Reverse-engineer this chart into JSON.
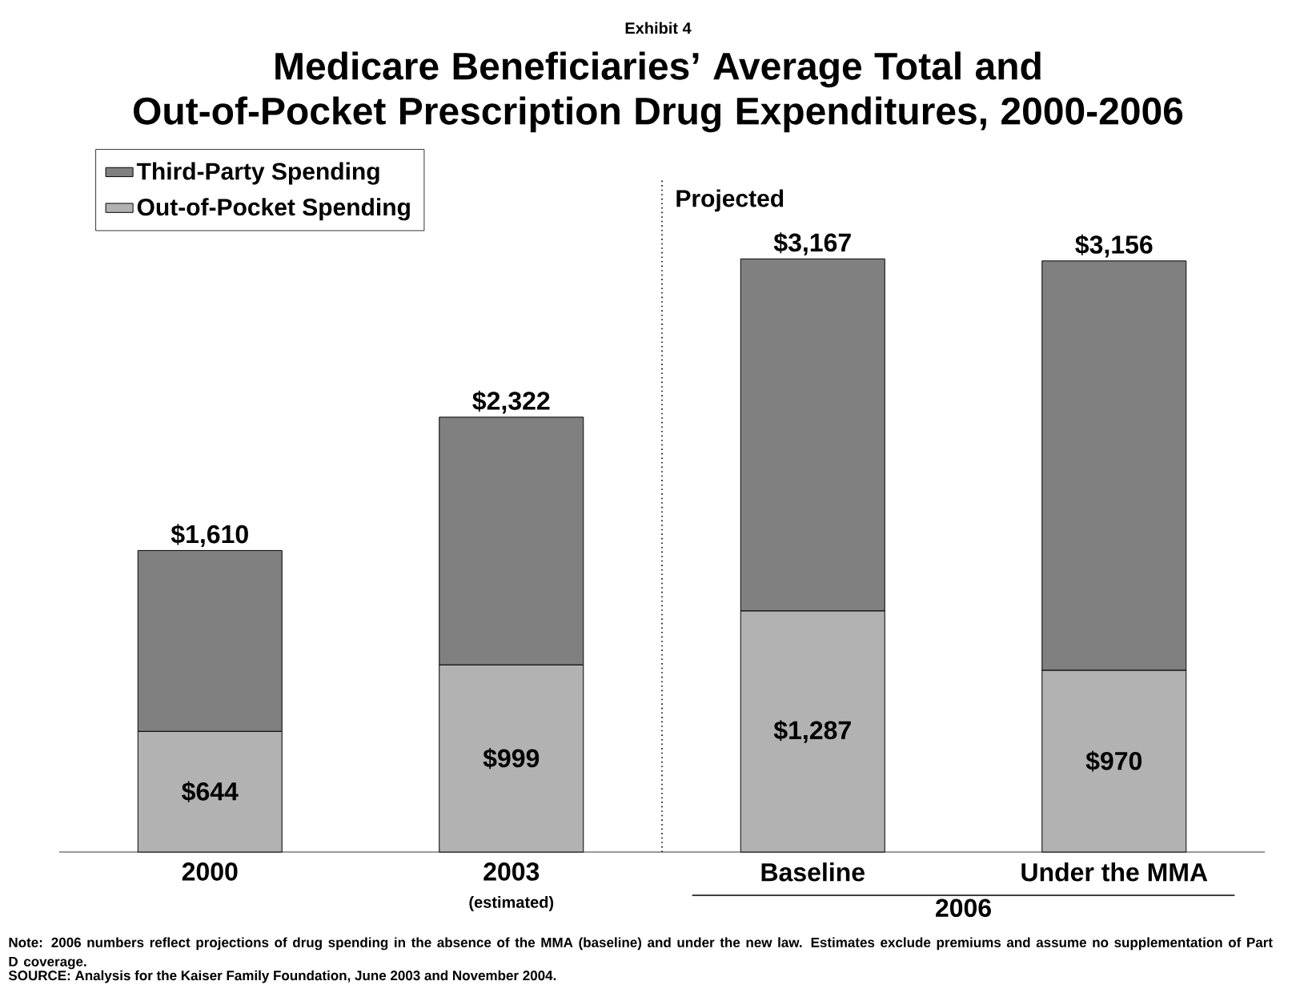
{
  "chart_data": {
    "type": "bar",
    "title": "Medicare Beneficiaries’ Average Total and Out-of-Pocket Prescription Drug Expenditures, 2000-2006",
    "categories": [
      "2000",
      "2003",
      "Baseline",
      "Under the MMA"
    ],
    "stacked": true,
    "series": [
      {
        "name": "Out-of-Pocket Spending",
        "color": "#b2b2b2",
        "values": [
          644,
          999,
          1287,
          970
        ],
        "value_labels": [
          "$644",
          "$999",
          "$1,287",
          "$970"
        ]
      },
      {
        "name": "Third-Party Spending",
        "color": "#808080",
        "values": [
          966,
          1323,
          1880,
          2186
        ]
      }
    ],
    "totals": [
      "$1,610",
      "$2,322",
      "$3,167",
      "$3,156"
    ],
    "legend": "top left",
    "tick_labels": "x",
    "annotations": [
      "Exhibit 4",
      "(estimated)",
      "2006",
      "Note: 2006 numbers reflect projections of drug spending in the absence of the MMA (baseline) and under the new law. Estimates exclude premiums and assume no supplementation of Part D coverage.",
      "SOURCE: Analysis for the Kaiser Family Foundation, June 2003 and November 2004.",
      "Projected"
    ]
  }
}
